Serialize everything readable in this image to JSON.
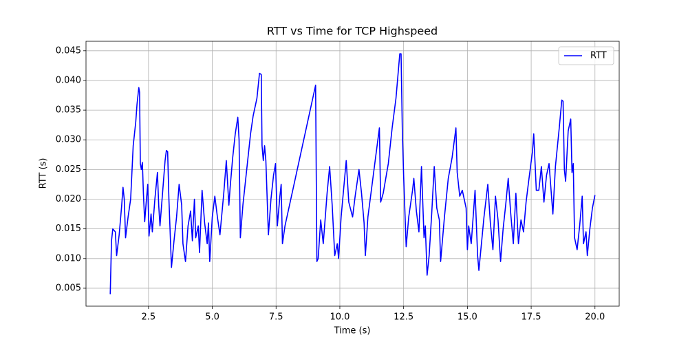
{
  "chart_data": {
    "type": "line",
    "title": "RTT vs Time for TCP Highspeed",
    "xlabel": "Time (s)",
    "ylabel": "RTT (s)",
    "x": [
      1.0,
      1.05,
      1.1,
      1.2,
      1.25,
      1.35,
      1.45,
      1.5,
      1.55,
      1.6,
      1.7,
      1.8,
      1.9,
      2.0,
      2.05,
      2.12,
      2.15,
      2.18,
      2.22,
      2.26,
      2.3,
      2.35,
      2.42,
      2.47,
      2.52,
      2.6,
      2.65,
      2.75,
      2.85,
      2.9,
      2.95,
      3.05,
      3.15,
      3.2,
      3.25,
      3.3,
      3.4,
      3.5,
      3.6,
      3.7,
      3.8,
      3.85,
      3.95,
      4.05,
      4.15,
      4.22,
      4.3,
      4.35,
      4.45,
      4.5,
      4.6,
      4.7,
      4.8,
      4.85,
      4.9,
      5.0,
      5.1,
      5.2,
      5.3,
      5.45,
      5.55,
      5.65,
      5.7,
      5.8,
      5.9,
      6.0,
      6.05,
      6.1,
      6.2,
      6.35,
      6.5,
      6.6,
      6.75,
      6.85,
      6.92,
      6.95,
      7.0,
      7.05,
      7.1,
      7.2,
      7.3,
      7.4,
      7.48,
      7.55,
      7.65,
      7.7,
      7.75,
      7.85,
      9.05,
      9.1,
      9.15,
      9.25,
      9.35,
      9.5,
      9.6,
      9.7,
      9.8,
      9.9,
      9.95,
      10.05,
      10.25,
      10.35,
      10.5,
      10.6,
      10.75,
      10.85,
      10.95,
      11.0,
      11.1,
      11.25,
      11.4,
      11.55,
      11.6,
      11.7,
      11.9,
      12.05,
      12.2,
      12.35,
      12.4,
      12.45,
      12.5,
      12.6,
      12.7,
      12.85,
      12.9,
      13.0,
      13.1,
      13.2,
      13.3,
      13.35,
      13.42,
      13.5,
      13.6,
      13.7,
      13.8,
      13.9,
      13.95,
      14.1,
      14.25,
      14.4,
      14.55,
      14.6,
      14.7,
      14.8,
      14.95,
      15.0,
      15.05,
      15.15,
      15.25,
      15.3,
      15.4,
      15.45,
      15.55,
      15.65,
      15.8,
      15.9,
      16.0,
      16.1,
      16.2,
      16.3,
      16.4,
      16.5,
      16.6,
      16.7,
      16.8,
      16.9,
      17.0,
      17.1,
      17.2,
      17.3,
      17.4,
      17.55,
      17.6,
      17.7,
      17.8,
      17.9,
      18.0,
      18.1,
      18.2,
      18.35,
      18.45,
      18.6,
      18.7,
      18.75,
      18.8,
      18.85,
      18.95,
      19.05,
      19.1,
      19.15,
      19.2,
      19.3,
      19.4,
      19.5,
      19.55,
      19.65,
      19.7,
      19.8,
      19.9,
      20.0
    ],
    "series": [
      {
        "name": "RTT",
        "color": "#0000ff",
        "values": [
          0.004,
          0.013,
          0.015,
          0.0145,
          0.0105,
          0.014,
          0.019,
          0.022,
          0.02,
          0.0135,
          0.017,
          0.02,
          0.029,
          0.033,
          0.036,
          0.0388,
          0.038,
          0.026,
          0.025,
          0.0262,
          0.021,
          0.0162,
          0.02,
          0.0225,
          0.0138,
          0.0175,
          0.0145,
          0.02,
          0.0245,
          0.019,
          0.0155,
          0.021,
          0.0265,
          0.0282,
          0.028,
          0.02,
          0.0085,
          0.013,
          0.017,
          0.0225,
          0.019,
          0.0125,
          0.0095,
          0.0155,
          0.018,
          0.013,
          0.02,
          0.0135,
          0.0155,
          0.011,
          0.0215,
          0.016,
          0.0125,
          0.016,
          0.0095,
          0.017,
          0.0205,
          0.017,
          0.014,
          0.021,
          0.0265,
          0.019,
          0.022,
          0.027,
          0.031,
          0.0338,
          0.03,
          0.0135,
          0.019,
          0.025,
          0.031,
          0.034,
          0.037,
          0.0412,
          0.041,
          0.029,
          0.0265,
          0.029,
          0.0265,
          0.014,
          0.02,
          0.024,
          0.026,
          0.0155,
          0.0205,
          0.0225,
          0.0125,
          0.0155,
          0.0392,
          0.0095,
          0.01,
          0.0165,
          0.0125,
          0.021,
          0.0255,
          0.019,
          0.0105,
          0.0125,
          0.01,
          0.017,
          0.0265,
          0.0195,
          0.017,
          0.0205,
          0.025,
          0.021,
          0.016,
          0.0105,
          0.017,
          0.022,
          0.027,
          0.032,
          0.0195,
          0.021,
          0.026,
          0.032,
          0.037,
          0.0445,
          0.0445,
          0.0315,
          0.024,
          0.012,
          0.017,
          0.0215,
          0.0235,
          0.018,
          0.0145,
          0.0255,
          0.0135,
          0.0155,
          0.0072,
          0.0105,
          0.0175,
          0.0255,
          0.0185,
          0.0165,
          0.0095,
          0.017,
          0.0235,
          0.027,
          0.032,
          0.0245,
          0.0205,
          0.0215,
          0.0185,
          0.0115,
          0.0155,
          0.0125,
          0.0185,
          0.0215,
          0.0105,
          0.008,
          0.0125,
          0.017,
          0.0225,
          0.016,
          0.0115,
          0.0205,
          0.0165,
          0.0095,
          0.015,
          0.019,
          0.0235,
          0.0175,
          0.0125,
          0.021,
          0.0125,
          0.0165,
          0.0145,
          0.0195,
          0.023,
          0.028,
          0.031,
          0.0215,
          0.0215,
          0.0255,
          0.0195,
          0.024,
          0.026,
          0.0175,
          0.0255,
          0.032,
          0.0367,
          0.0365,
          0.025,
          0.023,
          0.0315,
          0.0335,
          0.0245,
          0.026,
          0.0135,
          0.0115,
          0.0155,
          0.0205,
          0.0125,
          0.0145,
          0.0105,
          0.015,
          0.0185,
          0.0207
        ]
      }
    ],
    "xlim": [
      0.05,
      20.95
    ],
    "ylim": [
      0.00198,
      0.0466
    ],
    "xticks": [
      2.5,
      {
        "value": 5,
        "label": "5.0"
      },
      7.5,
      {
        "value": 10,
        "label": "10.0"
      },
      12.5,
      {
        "value": 15,
        "label": "15.0"
      },
      17.5,
      {
        "value": 20,
        "label": "20.0"
      }
    ],
    "yticks": [
      0.005,
      {
        "value": 0.01,
        "label": "0.010"
      },
      0.015,
      {
        "value": 0.02,
        "label": "0.020"
      },
      0.025,
      {
        "value": 0.03,
        "label": "0.030"
      },
      0.035,
      {
        "value": 0.04,
        "label": "0.040"
      },
      0.045
    ],
    "grid": true,
    "legend": "upper right"
  }
}
